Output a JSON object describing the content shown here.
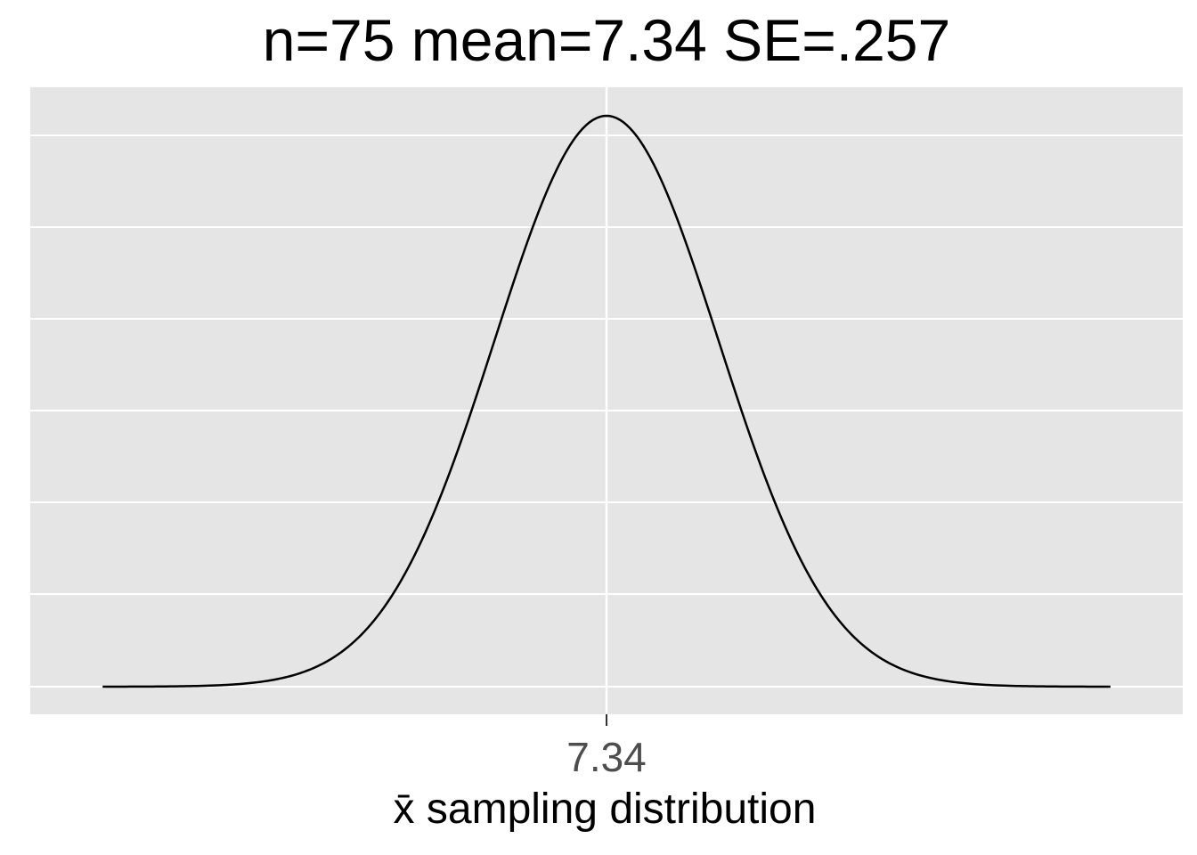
{
  "chart_data": {
    "type": "line",
    "title": "n=75   mean=7.34   SE=.257",
    "xlabel": "x̄ sampling distribution",
    "ylabel": "",
    "series": [
      {
        "curve": "normal density",
        "mean": 7.34,
        "sd": 0.257
      }
    ],
    "x_ticks": [
      7.34
    ],
    "x_tick_labels": [
      "7.34"
    ],
    "xlim": [
      6.0175,
      8.6625
    ],
    "y_tick_labels_shown": false,
    "grid": true,
    "legend": "none",
    "colors": {
      "panel_background": "#e5e5e5",
      "grid": "#ffffff",
      "curve": "#000000",
      "tick_label": "#4d4d4d"
    }
  }
}
